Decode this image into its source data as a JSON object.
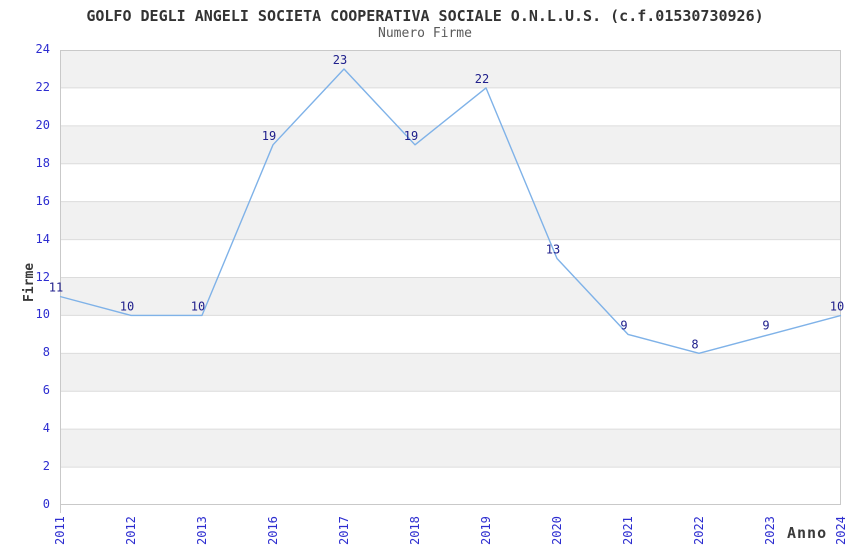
{
  "header": {
    "title": "GOLFO DEGLI ANGELI SOCIETA COOPERATIVA SOCIALE O.N.L.U.S. (c.f.01530730926)",
    "subtitle": "Numero Firme"
  },
  "chart_data": {
    "type": "line",
    "title": "GOLFO DEGLI ANGELI SOCIETA COOPERATIVA SOCIALE O.N.L.U.S. (c.f.01530730926)",
    "subtitle": "Numero Firme",
    "xlabel": "Anno",
    "ylabel": "Firme",
    "categories": [
      "2011",
      "2012",
      "2013",
      "2016",
      "2017",
      "2018",
      "2019",
      "2020",
      "2021",
      "2022",
      "2023",
      "2024"
    ],
    "values": [
      11,
      10,
      10,
      19,
      23,
      19,
      22,
      13,
      9,
      8,
      9,
      10
    ],
    "data_labels": [
      "11",
      "10",
      "10",
      "19",
      "23",
      "19",
      "22",
      "13",
      "9",
      "8",
      "9",
      "10"
    ],
    "ylim": [
      0,
      24
    ],
    "yticks": [
      0,
      2,
      4,
      6,
      8,
      10,
      12,
      14,
      16,
      18,
      20,
      22,
      24
    ],
    "grid": "horizontal-bands",
    "legend": "none",
    "colors": {
      "line": "#7fb2e8",
      "tick_label": "#2d2dd0",
      "data_label": "#20208c",
      "band_gray": "#f1f1f1",
      "band_white": "#ffffff",
      "grid_line": "#dcdcdc",
      "axis_border": "#c9c9c9",
      "title": "#333333",
      "subtitle": "#5a5a5a"
    }
  }
}
